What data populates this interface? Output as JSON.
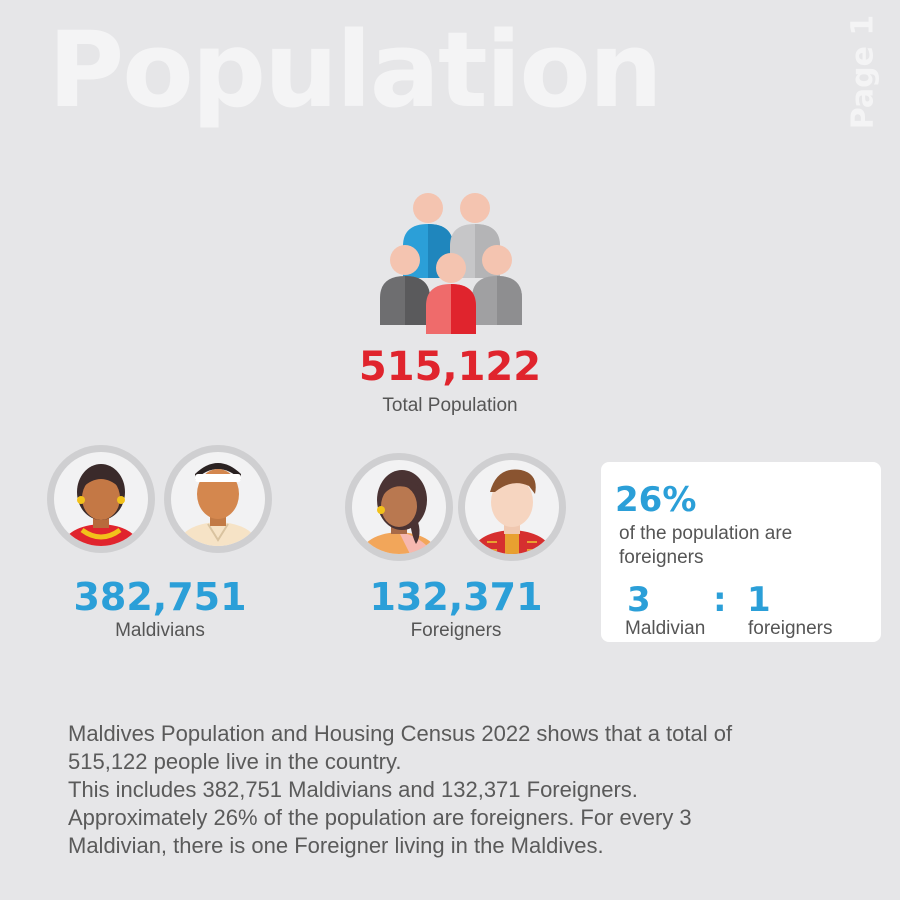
{
  "header": {
    "title": "Population",
    "page_label": "Page 1"
  },
  "total": {
    "value": "515,122",
    "label": "Total Population"
  },
  "maldivians": {
    "value": "382,751",
    "label": "Maldivians"
  },
  "foreigners": {
    "value": "132,371",
    "label": "Foreigners"
  },
  "stat_card": {
    "percent": "26%",
    "percent_text": "of the population are foreigners",
    "ratio_left": "3",
    "ratio_sep": ":",
    "ratio_right": "1",
    "ratio_left_label": "Maldivian",
    "ratio_right_label": "foreigners"
  },
  "description": {
    "line1": "Maldives Population and Housing Census 2022  shows that a total of",
    "line2": "515,122 people live in the country.",
    "line3": "This includes 382,751 Maldivians and 132,371 Foreigners.",
    "line4": "Approximately 26% of the population are foreigners. For every 3",
    "line5": "Maldivian, there is one Foreigner living in the Maldives."
  },
  "colors": {
    "background": "#e6e6e8",
    "accent_blue": "#2b9fd8",
    "accent_red": "#e0242d",
    "title_white": "#f4f4f5"
  },
  "icons": [
    "people-group-icon",
    "maldivian-woman-avatar",
    "maldivian-man-avatar",
    "foreign-woman-avatar",
    "foreign-man-avatar"
  ]
}
